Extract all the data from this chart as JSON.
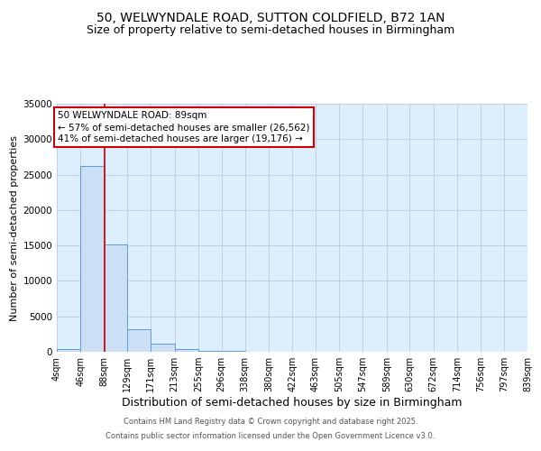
{
  "title": "50, WELWYNDALE ROAD, SUTTON COLDFIELD, B72 1AN",
  "subtitle": "Size of property relative to semi-detached houses in Birmingham",
  "xlabel": "Distribution of semi-detached houses by size in Birmingham",
  "ylabel": "Number of semi-detached properties",
  "bins": [
    4,
    46,
    88,
    129,
    171,
    213,
    255,
    296,
    338,
    380,
    422,
    463,
    505,
    547,
    589,
    630,
    672,
    714,
    756,
    797,
    839
  ],
  "bin_labels": [
    "4sqm",
    "46sqm",
    "88sqm",
    "129sqm",
    "171sqm",
    "213sqm",
    "255sqm",
    "296sqm",
    "338sqm",
    "380sqm",
    "422sqm",
    "463sqm",
    "505sqm",
    "547sqm",
    "589sqm",
    "630sqm",
    "672sqm",
    "714sqm",
    "756sqm",
    "797sqm",
    "839sqm"
  ],
  "counts": [
    400,
    26200,
    15200,
    3200,
    1100,
    400,
    180,
    80,
    0,
    0,
    0,
    0,
    0,
    0,
    0,
    0,
    0,
    0,
    0,
    0
  ],
  "bar_color": "#cce0f5",
  "bar_edge_color": "#5b9bd5",
  "property_size": 89,
  "property_line_color": "#cc0000",
  "ylim": [
    0,
    35000
  ],
  "yticks": [
    0,
    5000,
    10000,
    15000,
    20000,
    25000,
    30000,
    35000
  ],
  "annotation_text": "50 WELWYNDALE ROAD: 89sqm\n← 57% of semi-detached houses are smaller (26,562)\n41% of semi-detached houses are larger (19,176) →",
  "annotation_box_color": "#ffffff",
  "annotation_box_edge": "#cc0000",
  "grid_color": "#c0d0e0",
  "bg_color": "#ddeeff",
  "footer_line1": "Contains HM Land Registry data © Crown copyright and database right 2025.",
  "footer_line2": "Contains public sector information licensed under the Open Government Licence v3.0.",
  "title_fontsize": 10,
  "subtitle_fontsize": 9,
  "xlabel_fontsize": 9,
  "ylabel_fontsize": 8,
  "tick_fontsize": 7,
  "annot_fontsize": 7.5,
  "footer_fontsize": 6
}
